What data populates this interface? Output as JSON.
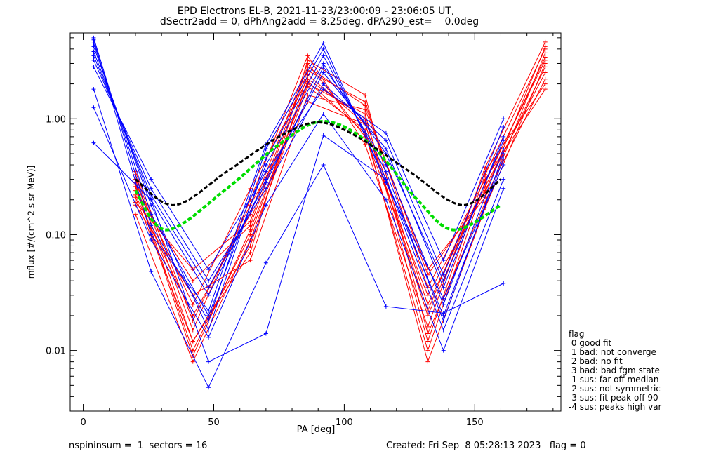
{
  "title_line1": "EPD Electrons EL-B, 2021-11-23/23:00:09 - 23:06:05 UT,",
  "title_line2": "dSectr2add = 0, dPhAng2add = 8.25deg, dPA290_est=    0.0deg",
  "footer_left": "nspininsum =  1  sectors = 16",
  "footer_right": "Created: Fri Sep  8 05:28:13 2023   flag = 0",
  "legend": {
    "title": "flag",
    "entries": [
      " 0 good fit",
      " 1 bad: not converge",
      " 2 bad: no fit",
      " 3 bad: bad fgm state",
      "-1 sus: far off median",
      "-2 sus: not symmetric",
      "-3 sus: fit peak off 90",
      "-4 sus: peaks high var"
    ]
  },
  "colors": {
    "red_series": "#ff0000",
    "blue_series": "#0000ff",
    "fit_black": "#000000",
    "fit_green": "#00dd00"
  },
  "chart_data": {
    "type": "line",
    "xlabel": "PA [deg]",
    "ylabel": "mflux [#/(cm^2 s sr MeV)]",
    "xlim": [
      -5,
      183
    ],
    "ylim": [
      0.003,
      5.5
    ],
    "yscale": "log",
    "xticks": [
      0,
      50,
      100,
      150
    ],
    "yticks": [
      {
        "v": 0.01,
        "label": "0.01"
      },
      {
        "v": 0.1,
        "label": "0.10"
      },
      {
        "v": 1.0,
        "label": "1.00"
      }
    ],
    "red_pa": [
      20,
      42,
      64,
      86,
      108,
      132,
      154,
      177
    ],
    "red_lines": [
      [
        0.3,
        0.012,
        0.08,
        2.4,
        0.9,
        0.02,
        0.28,
        3.4
      ],
      [
        0.26,
        0.009,
        0.11,
        2.0,
        1.1,
        0.012,
        0.33,
        4.0
      ],
      [
        0.22,
        0.02,
        0.15,
        3.0,
        0.7,
        0.03,
        0.24,
        2.8
      ],
      [
        0.18,
        0.03,
        0.06,
        1.6,
        1.2,
        0.05,
        0.21,
        2.2
      ],
      [
        0.33,
        0.015,
        0.2,
        3.5,
        0.6,
        0.016,
        0.38,
        4.6
      ],
      [
        0.24,
        0.04,
        0.12,
        2.6,
        1.4,
        0.035,
        0.3,
        1.8
      ],
      [
        0.15,
        0.008,
        0.09,
        1.9,
        0.8,
        0.008,
        0.17,
        3.0
      ],
      [
        0.28,
        0.025,
        0.25,
        2.2,
        1.0,
        0.025,
        0.26,
        2.5
      ],
      [
        0.21,
        0.012,
        0.07,
        3.2,
        1.6,
        0.014,
        0.19,
        3.7
      ],
      [
        0.35,
        0.018,
        0.18,
        1.4,
        0.9,
        0.022,
        0.35,
        2.0
      ],
      [
        0.19,
        0.05,
        0.13,
        2.8,
        1.3,
        0.045,
        0.23,
        4.2
      ],
      [
        0.27,
        0.01,
        0.1,
        2.1,
        0.75,
        0.01,
        0.29,
        3.2
      ]
    ],
    "blue_pa": [
      4,
      26,
      48,
      70,
      92,
      116,
      138,
      161
    ],
    "blue_lines": [
      [
        4.5,
        0.15,
        0.02,
        0.4,
        3.0,
        0.4,
        0.025,
        0.55
      ],
      [
        3.8,
        0.2,
        0.03,
        0.3,
        2.5,
        0.55,
        0.035,
        0.7
      ],
      [
        5.0,
        0.12,
        0.018,
        0.55,
        4.0,
        0.3,
        0.02,
        0.45
      ],
      [
        3.2,
        0.25,
        0.04,
        0.25,
        2.0,
        0.65,
        0.045,
        0.85
      ],
      [
        4.2,
        0.18,
        0.015,
        0.45,
        3.5,
        0.35,
        0.018,
        0.5
      ],
      [
        2.8,
        0.3,
        0.05,
        0.35,
        1.8,
        0.75,
        0.06,
        1.0
      ],
      [
        4.8,
        0.1,
        0.022,
        0.6,
        4.5,
        0.28,
        0.028,
        0.4
      ],
      [
        3.5,
        0.22,
        0.035,
        0.28,
        2.8,
        0.5,
        0.04,
        0.65
      ],
      [
        1.8,
        0.048,
        0.0048,
        0.057,
        0.4,
        0.024,
        0.021,
        0.038
      ],
      [
        0.62,
        0.2,
        0.008,
        0.014,
        0.72,
        0.3,
        0.015,
        0.3
      ],
      [
        1.25,
        0.09,
        0.013,
        0.18,
        1.1,
        0.2,
        0.01,
        0.25
      ]
    ],
    "fit_black": [
      [
        20,
        0.3
      ],
      [
        35,
        0.18
      ],
      [
        55,
        0.35
      ],
      [
        75,
        0.7
      ],
      [
        90,
        0.93
      ],
      [
        105,
        0.7
      ],
      [
        125,
        0.35
      ],
      [
        145,
        0.18
      ],
      [
        160,
        0.3
      ]
    ],
    "fit_green": [
      [
        20,
        0.24
      ],
      [
        32,
        0.11
      ],
      [
        55,
        0.25
      ],
      [
        75,
        0.6
      ],
      [
        92,
        0.95
      ],
      [
        110,
        0.6
      ],
      [
        128,
        0.2
      ],
      [
        142,
        0.11
      ],
      [
        160,
        0.18
      ]
    ]
  }
}
